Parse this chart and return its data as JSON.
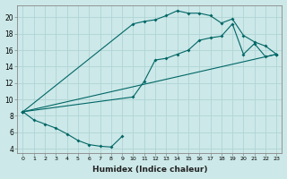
{
  "xlabel": "Humidex (Indice chaleur)",
  "bg_color": "#cce8e8",
  "line_color": "#006666",
  "xlim": [
    -0.5,
    23.5
  ],
  "ylim": [
    3.5,
    21.5
  ],
  "xticks": [
    0,
    1,
    2,
    3,
    4,
    5,
    6,
    7,
    8,
    9,
    10,
    11,
    12,
    13,
    14,
    15,
    16,
    17,
    18,
    19,
    20,
    21,
    22,
    23
  ],
  "yticks": [
    4,
    6,
    8,
    10,
    12,
    14,
    16,
    18,
    20
  ],
  "series1_x": [
    0,
    1,
    2,
    3,
    4,
    5,
    6,
    7,
    8,
    9
  ],
  "series1_y": [
    8.5,
    7.5,
    7.0,
    6.5,
    5.8,
    5.0,
    4.5,
    4.3,
    4.2,
    5.5
  ],
  "series2_x": [
    0,
    10,
    11,
    12,
    13,
    14,
    15,
    16,
    17,
    18,
    19,
    20,
    21,
    22,
    23
  ],
  "series2_y": [
    8.5,
    19.2,
    19.5,
    19.7,
    20.2,
    20.8,
    20.5,
    20.5,
    20.2,
    19.3,
    19.8,
    17.8,
    17.0,
    16.5,
    15.5
  ],
  "series3_x": [
    0,
    10,
    11,
    12,
    13,
    14,
    15,
    16,
    17,
    18,
    19,
    20,
    21,
    22,
    23
  ],
  "series3_y": [
    8.5,
    10.3,
    12.2,
    14.8,
    15.0,
    15.5,
    16.0,
    17.2,
    17.5,
    17.7,
    19.2,
    15.5,
    16.8,
    15.2,
    15.5
  ],
  "series4_x": [
    0,
    23
  ],
  "series4_y": [
    8.5,
    15.5
  ]
}
